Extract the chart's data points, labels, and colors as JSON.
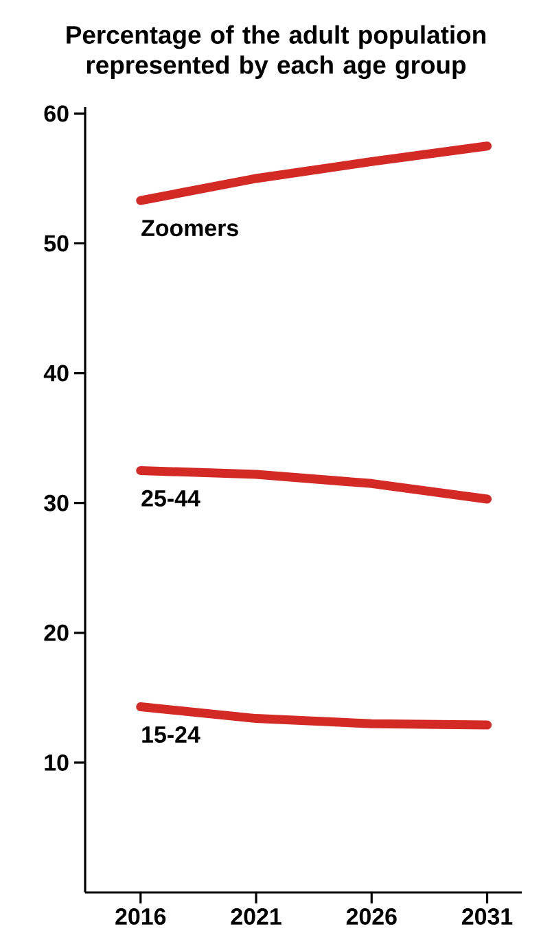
{
  "chart_data": {
    "type": "line",
    "title": "Percentage of the adult population represented by each age group",
    "categories": [
      "2016",
      "2021",
      "2026",
      "2031"
    ],
    "series": [
      {
        "name": "Zoomers",
        "color": "#d42a26",
        "values": [
          53.3,
          55.0,
          56.3,
          57.5
        ]
      },
      {
        "name": "25-44",
        "color": "#d42a26",
        "values": [
          32.5,
          32.2,
          31.5,
          30.3
        ]
      },
      {
        "name": "15-24",
        "color": "#d42a26",
        "values": [
          14.3,
          13.4,
          13.0,
          12.9
        ]
      }
    ],
    "ylim": [
      0,
      60.5
    ],
    "yticks": [
      10,
      20,
      30,
      40,
      50,
      60
    ],
    "grid": false,
    "marker": "none",
    "line_style": "solid"
  }
}
